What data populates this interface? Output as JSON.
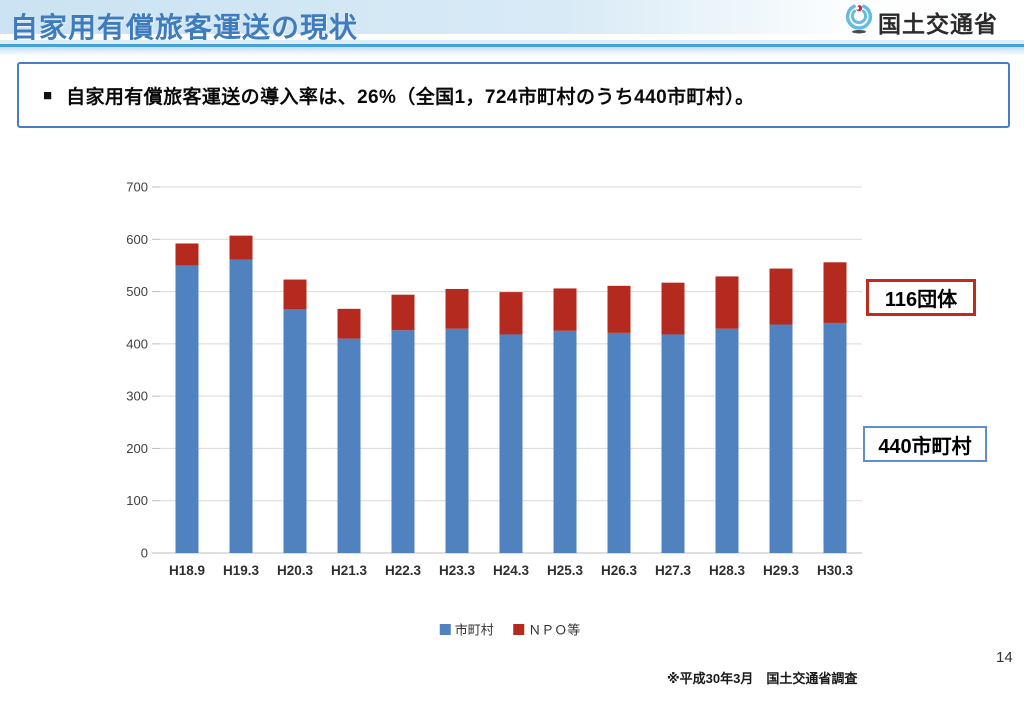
{
  "page": {
    "number": "14"
  },
  "header": {
    "title": "自家用有償旅客運送の現状",
    "agency": "国土交通省"
  },
  "summary": {
    "bullet": "■",
    "text": "自家用有償旅客運送の導入率は、26%（全国1，724市町村のうち440市町村）。"
  },
  "chart_data": {
    "type": "bar",
    "stacked": true,
    "title": "",
    "categories": [
      "H18.9",
      "H19.3",
      "H20.3",
      "H21.3",
      "H22.3",
      "H23.3",
      "H24.3",
      "H25.3",
      "H26.3",
      "H27.3",
      "H28.3",
      "H29.3",
      "H30.3"
    ],
    "series": [
      {
        "name": "市町村",
        "color": "#4F82BF",
        "values": [
          550,
          561,
          466,
          410,
          426,
          429,
          418,
          425,
          421,
          418,
          429,
          437,
          440
        ]
      },
      {
        "name": "ＮＰＯ等",
        "color": "#B52A1E",
        "values": [
          42,
          46,
          57,
          57,
          68,
          76,
          81,
          81,
          90,
          99,
          100,
          107,
          116
        ]
      }
    ],
    "totals": [
      592,
      607,
      523,
      467,
      494,
      505,
      499,
      506,
      511,
      517,
      529,
      544,
      556
    ],
    "ylim": [
      0,
      700
    ],
    "ytick_interval": 100,
    "grid": true,
    "legend_position": "bottom"
  },
  "callouts": {
    "npo": {
      "label": "116団体",
      "border_color": "#BF2B1D"
    },
    "municipality": {
      "label": "440市町村",
      "border_color": "#5E8FC6"
    }
  },
  "footnote": "※平成30年3月　国土交通省調査",
  "colors": {
    "header_band": "#CBE3F2",
    "header_line": "#45A0D5",
    "title_text": "#3F7CBF",
    "summary_border": "#4B7CC8",
    "grid_line": "#D9D9D9",
    "axis_text": "#3F3F3F",
    "axis_line": "#C9C9C9"
  }
}
